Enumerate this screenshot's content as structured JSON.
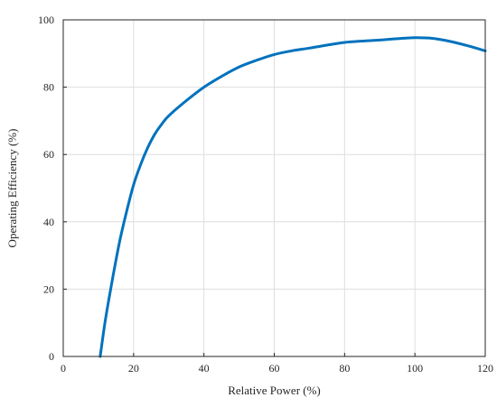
{
  "chart_data": {
    "type": "line",
    "title": "",
    "xlabel": "Relative Power (%)",
    "ylabel": "Operating Efficiency (%)",
    "xlim": [
      0,
      120
    ],
    "ylim": [
      0,
      100
    ],
    "xticks": [
      0,
      20,
      40,
      60,
      80,
      100,
      120
    ],
    "yticks": [
      0,
      20,
      40,
      60,
      80,
      100
    ],
    "grid": true,
    "legend": "none",
    "series": [
      {
        "color": "#0072BD",
        "x": [
          10.5,
          12,
          14,
          16,
          18,
          20,
          22,
          24,
          26,
          28,
          30,
          35,
          40,
          45,
          50,
          55,
          60,
          65,
          70,
          75,
          80,
          85,
          90,
          95,
          100,
          105,
          110,
          115,
          120
        ],
        "y": [
          0,
          11,
          23,
          34,
          43,
          51,
          57,
          62,
          66,
          69,
          71.5,
          76,
          80,
          83.2,
          86,
          88,
          89.7,
          90.8,
          91.6,
          92.5,
          93.3,
          93.7,
          94,
          94.4,
          94.7,
          94.5,
          93.6,
          92.3,
          90.8
        ]
      }
    ]
  }
}
